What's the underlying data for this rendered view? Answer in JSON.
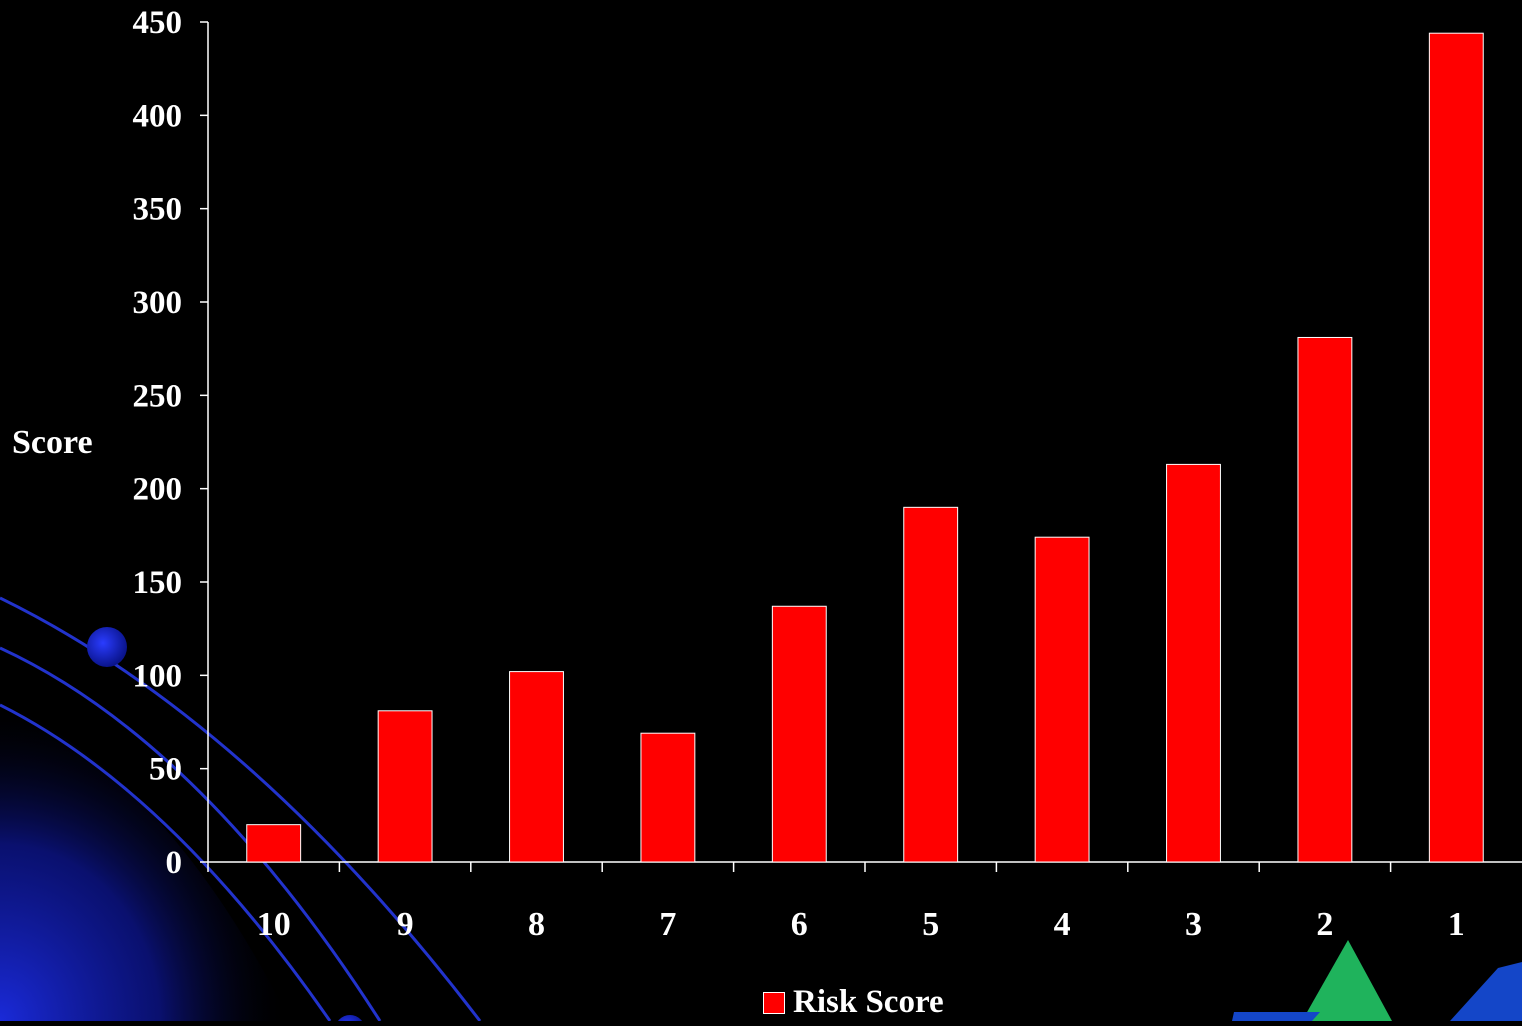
{
  "chart_data": {
    "type": "bar",
    "categories": [
      "10",
      "9",
      "8",
      "7",
      "6",
      "5",
      "4",
      "3",
      "2",
      "1"
    ],
    "series": [
      {
        "name": "Risk Score",
        "values": [
          20,
          81,
          102,
          69,
          137,
          190,
          174,
          213,
          281,
          444
        ]
      }
    ],
    "ylabel": "Score",
    "xlabel": "",
    "ylim": [
      0,
      450
    ],
    "yticks": [
      0,
      50,
      100,
      150,
      200,
      250,
      300,
      350,
      400,
      450
    ],
    "grid": false,
    "legend": "bottom",
    "colors": {
      "bar": "#ff0000",
      "bar_outline": "#ffffff",
      "background": "#000000",
      "axis": "#ffffff"
    }
  },
  "decor": {
    "arc_color": "#2233cc",
    "glow_color": "#1a2ad8",
    "logo_colors": [
      "#1fb35c",
      "#1446c8"
    ]
  }
}
